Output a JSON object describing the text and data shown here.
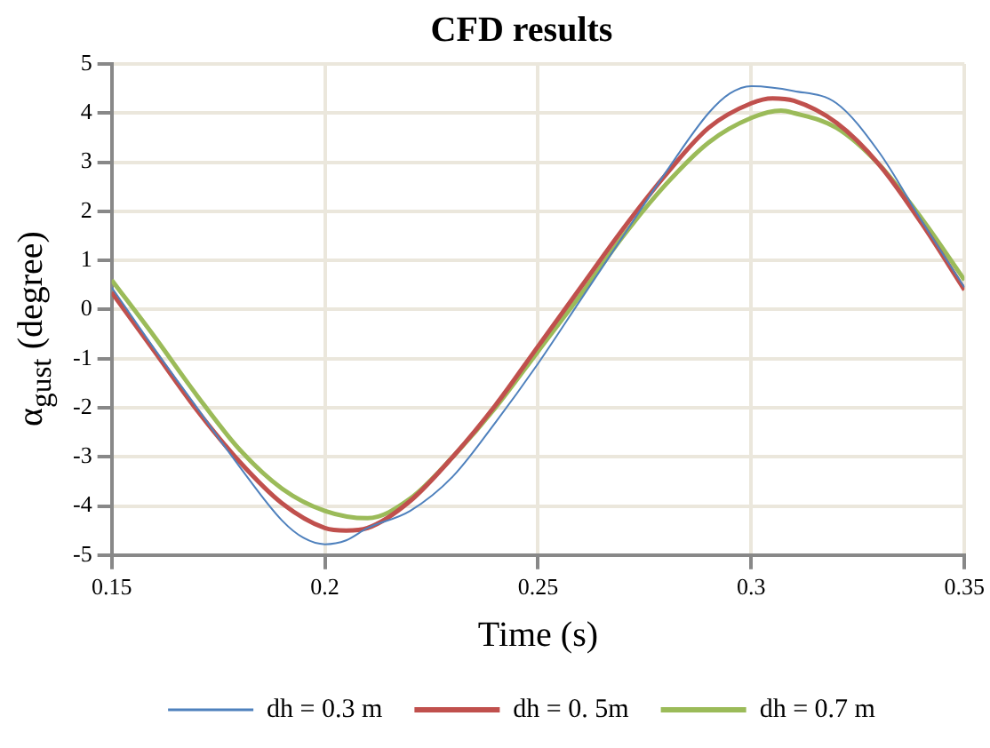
{
  "chart_data": {
    "type": "line",
    "title": "CFD results",
    "xlabel": "Time (s)",
    "ylabel": "α$_{gust}$ (degree)",
    "xlim": [
      0.15,
      0.35
    ],
    "xticks": [
      0.15,
      0.2,
      0.25,
      0.3,
      0.35
    ],
    "ylim": [
      -5,
      5
    ],
    "yticks": [
      -5,
      -4,
      -3,
      -2,
      -1,
      0,
      1,
      2,
      3,
      4,
      5
    ],
    "grid": true,
    "legend": "bottom",
    "marker": "none",
    "series": [
      {
        "name": "dh = 0.3 m",
        "color": "#4f81bd",
        "x": [
          0.15,
          0.16,
          0.17,
          0.18,
          0.19,
          0.195,
          0.2,
          0.205,
          0.21,
          0.22,
          0.23,
          0.24,
          0.25,
          0.26,
          0.27,
          0.28,
          0.29,
          0.295,
          0.3,
          0.31,
          0.32,
          0.33,
          0.34,
          0.35
        ],
        "values": [
          0.45,
          -0.8,
          -2.0,
          -3.2,
          -4.3,
          -4.65,
          -4.78,
          -4.7,
          -4.45,
          -4.1,
          -3.4,
          -2.3,
          -1.1,
          0.2,
          1.5,
          2.8,
          4.0,
          4.4,
          4.55,
          4.45,
          4.2,
          3.2,
          1.8,
          0.45
        ]
      },
      {
        "name": "dh = 0. 5m",
        "color": "#c0504d",
        "x": [
          0.15,
          0.16,
          0.17,
          0.18,
          0.19,
          0.2,
          0.205,
          0.21,
          0.22,
          0.23,
          0.24,
          0.25,
          0.26,
          0.27,
          0.28,
          0.29,
          0.3,
          0.305,
          0.31,
          0.32,
          0.33,
          0.34,
          0.35
        ],
        "values": [
          0.35,
          -0.85,
          -2.05,
          -3.1,
          -3.95,
          -4.45,
          -4.5,
          -4.45,
          -3.9,
          -3.0,
          -1.95,
          -0.75,
          0.45,
          1.65,
          2.75,
          3.7,
          4.2,
          4.3,
          4.25,
          3.8,
          2.95,
          1.75,
          0.4
        ]
      },
      {
        "name": "dh = 0.7 m",
        "color": "#9bbb59",
        "x": [
          0.15,
          0.16,
          0.17,
          0.18,
          0.19,
          0.2,
          0.21,
          0.22,
          0.23,
          0.24,
          0.25,
          0.26,
          0.27,
          0.28,
          0.29,
          0.3,
          0.307,
          0.31,
          0.32,
          0.33,
          0.34,
          0.35
        ],
        "values": [
          0.6,
          -0.55,
          -1.75,
          -2.85,
          -3.65,
          -4.1,
          -4.25,
          -3.85,
          -3.0,
          -2.0,
          -0.85,
          0.3,
          1.5,
          2.55,
          3.4,
          3.9,
          4.05,
          4.0,
          3.7,
          2.95,
          1.85,
          0.6
        ]
      }
    ]
  }
}
